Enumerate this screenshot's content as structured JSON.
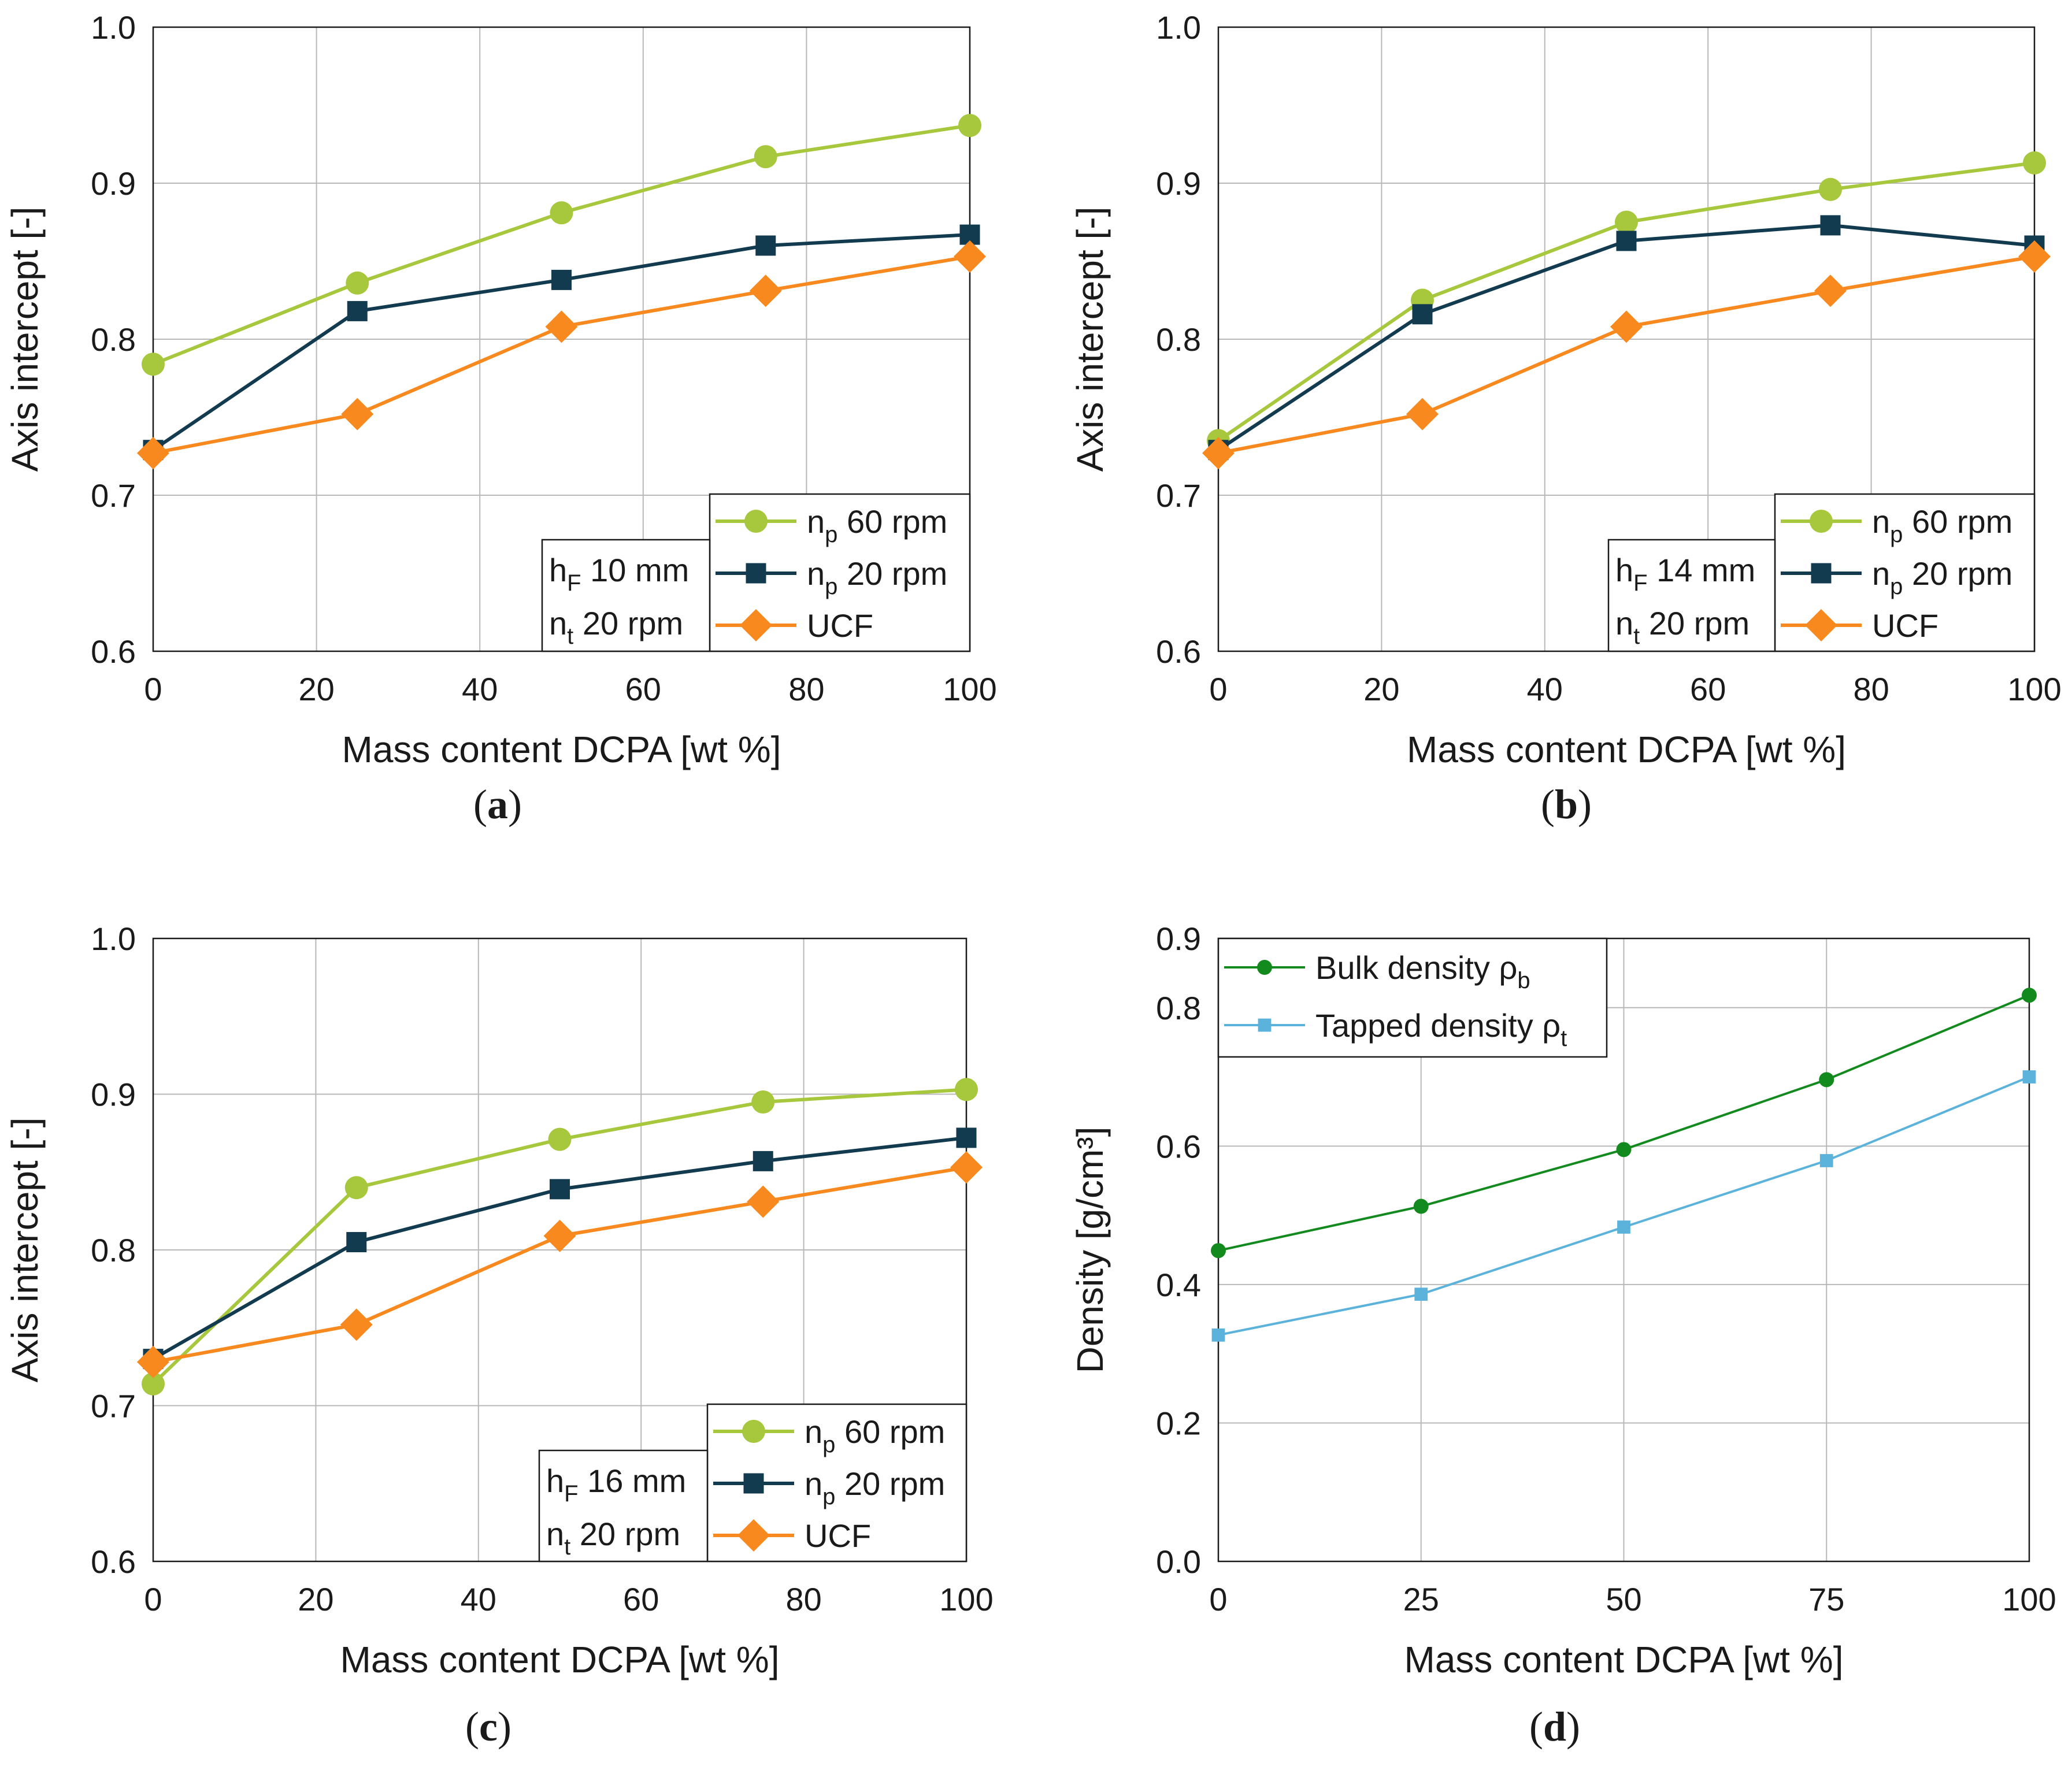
{
  "chart_data": [
    {
      "type": "line",
      "panel_label": "a",
      "caption_open": "(",
      "caption_close": ")",
      "xlabel": "Mass content DCPA [wt %]",
      "ylabel": "Axis intercept [-]",
      "xlim": [
        0,
        100
      ],
      "ylim": [
        0.6,
        1.0
      ],
      "xticks": [
        0,
        20,
        40,
        60,
        80,
        100
      ],
      "yticks": [
        0.6,
        0.7,
        0.8,
        0.9,
        1.0
      ],
      "xtick_labels": [
        "0",
        "20",
        "40",
        "60",
        "80",
        "100"
      ],
      "ytick_labels": [
        "0.6",
        "0.7",
        "0.8",
        "0.9",
        "1.0"
      ],
      "grid": true,
      "legend_position": "bottom-right",
      "param_box": {
        "line1": {
          "sym": "h",
          "sub": "F",
          "text": " 10 mm"
        },
        "line2": {
          "sym": "n",
          "sub": "t",
          "text": " 20 rpm"
        }
      },
      "series": [
        {
          "sym": "n",
          "sub": "p",
          "text": " 60 rpm",
          "color": "#a7c73c",
          "marker": "circle",
          "x": [
            0,
            25,
            50,
            75,
            100
          ],
          "y": [
            0.784,
            0.836,
            0.881,
            0.917,
            0.937
          ]
        },
        {
          "sym": "n",
          "sub": "p",
          "text": " 20 rpm",
          "color": "#123b50",
          "marker": "square",
          "x": [
            0,
            25,
            50,
            75,
            100
          ],
          "y": [
            0.729,
            0.818,
            0.838,
            0.86,
            0.867
          ]
        },
        {
          "sym": "UCF",
          "sub": "",
          "text": "",
          "color": "#f7891e",
          "marker": "diamond",
          "x": [
            0,
            25,
            50,
            75,
            100
          ],
          "y": [
            0.727,
            0.752,
            0.808,
            0.831,
            0.853
          ]
        }
      ]
    },
    {
      "type": "line",
      "panel_label": "b",
      "caption_open": "(",
      "caption_close": ")",
      "xlabel": "Mass content DCPA [wt %]",
      "ylabel": "Axis intercept [-]",
      "xlim": [
        0,
        100
      ],
      "ylim": [
        0.6,
        1.0
      ],
      "xticks": [
        0,
        20,
        40,
        60,
        80,
        100
      ],
      "yticks": [
        0.6,
        0.7,
        0.8,
        0.9,
        1.0
      ],
      "xtick_labels": [
        "0",
        "20",
        "40",
        "60",
        "80",
        "100"
      ],
      "ytick_labels": [
        "0.6",
        "0.7",
        "0.8",
        "0.9",
        "1.0"
      ],
      "grid": true,
      "legend_position": "bottom-right",
      "param_box": {
        "line1": {
          "sym": "h",
          "sub": "F",
          "text": " 14 mm"
        },
        "line2": {
          "sym": "n",
          "sub": "t",
          "text": " 20 rpm"
        }
      },
      "series": [
        {
          "sym": "n",
          "sub": "p",
          "text": " 60 rpm",
          "color": "#a7c73c",
          "marker": "circle",
          "x": [
            0,
            25,
            50,
            75,
            100
          ],
          "y": [
            0.735,
            0.825,
            0.875,
            0.896,
            0.913
          ]
        },
        {
          "sym": "n",
          "sub": "p",
          "text": " 20 rpm",
          "color": "#123b50",
          "marker": "square",
          "x": [
            0,
            25,
            50,
            75,
            100
          ],
          "y": [
            0.729,
            0.816,
            0.863,
            0.873,
            0.86
          ]
        },
        {
          "sym": "UCF",
          "sub": "",
          "text": "",
          "color": "#f7891e",
          "marker": "diamond",
          "x": [
            0,
            25,
            50,
            75,
            100
          ],
          "y": [
            0.727,
            0.752,
            0.808,
            0.831,
            0.853
          ]
        }
      ]
    },
    {
      "type": "line",
      "panel_label": "c",
      "caption_open": "(",
      "caption_close": ")",
      "xlabel": "Mass content DCPA [wt %]",
      "ylabel": "Axis intercept [-]",
      "xlim": [
        0,
        100
      ],
      "ylim": [
        0.6,
        1.0
      ],
      "xticks": [
        0,
        20,
        40,
        60,
        80,
        100
      ],
      "yticks": [
        0.6,
        0.7,
        0.8,
        0.9,
        1.0
      ],
      "xtick_labels": [
        "0",
        "20",
        "40",
        "60",
        "80",
        "100"
      ],
      "ytick_labels": [
        "0.6",
        "0.7",
        "0.8",
        "0.9",
        "1.0"
      ],
      "grid": true,
      "legend_position": "bottom-right",
      "param_box": {
        "line1": {
          "sym": "h",
          "sub": "F",
          "text": " 16 mm"
        },
        "line2": {
          "sym": "n",
          "sub": "t",
          "text": " 20 rpm"
        }
      },
      "series": [
        {
          "sym": "n",
          "sub": "p",
          "text": " 60 rpm",
          "color": "#a7c73c",
          "marker": "circle",
          "x": [
            0,
            25,
            50,
            75,
            100
          ],
          "y": [
            0.714,
            0.84,
            0.871,
            0.895,
            0.903
          ]
        },
        {
          "sym": "n",
          "sub": "p",
          "text": " 20 rpm",
          "color": "#123b50",
          "marker": "square",
          "x": [
            0,
            25,
            50,
            75,
            100
          ],
          "y": [
            0.73,
            0.805,
            0.839,
            0.857,
            0.872
          ]
        },
        {
          "sym": "UCF",
          "sub": "",
          "text": "",
          "color": "#f7891e",
          "marker": "diamond",
          "x": [
            0,
            25,
            50,
            75,
            100
          ],
          "y": [
            0.728,
            0.752,
            0.809,
            0.831,
            0.853
          ]
        }
      ]
    },
    {
      "type": "line",
      "panel_label": "d",
      "caption_open": "(",
      "caption_close": ")",
      "xlabel": "Mass content DCPA [wt %]",
      "ylabel": "Density [g/cm³]",
      "xlim": [
        0,
        100
      ],
      "ylim": [
        0.0,
        0.9
      ],
      "xticks": [
        0,
        25,
        50,
        75,
        100
      ],
      "yticks": [
        0.0,
        0.2,
        0.4,
        0.6,
        0.8,
        0.9
      ],
      "xtick_labels": [
        "0",
        "25",
        "50",
        "75",
        "100"
      ],
      "ytick_labels": [
        "0.0",
        "0.2",
        "0.4",
        "0.6",
        "0.8",
        "0.9"
      ],
      "grid": true,
      "legend_position": "top-left",
      "series": [
        {
          "sym": "Bulk density ρ",
          "sub": "b",
          "text": "",
          "color": "#138a1e",
          "marker": "circle",
          "x": [
            0,
            25,
            50,
            75,
            100
          ],
          "y": [
            0.449,
            0.513,
            0.595,
            0.696,
            0.818
          ]
        },
        {
          "sym": "Tapped density ρ",
          "sub": "t",
          "text": "",
          "color": "#5bb3dc",
          "marker": "square",
          "x": [
            0,
            25,
            50,
            75,
            100
          ],
          "y": [
            0.327,
            0.386,
            0.483,
            0.579,
            0.7
          ]
        }
      ]
    }
  ]
}
